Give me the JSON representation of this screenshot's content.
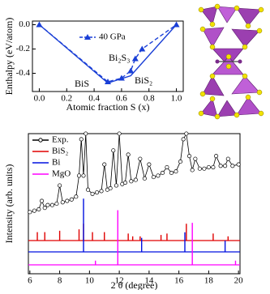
{
  "chart_data": [
    {
      "type": "line",
      "xlabel": "Atomic fraction S (x)",
      "ylabel": "Enthalpy (eV/atom)",
      "xlim": [
        -0.05,
        1.05
      ],
      "ylim": [
        -0.55,
        0.03
      ],
      "xticks": [
        {
          "value": 0,
          "label": "0.0"
        },
        0.2,
        0.4,
        0.6,
        0.8,
        {
          "value": 1,
          "label": "1.0"
        }
      ],
      "yticks": [
        {
          "value": 0,
          "label": "0.0"
        },
        -0.2,
        -0.4
      ],
      "series": [
        {
          "color": "#1a3fd6",
          "mode": "line",
          "x": [
            0,
            0.5,
            0.667,
            1
          ],
          "values": [
            0,
            -0.48,
            -0.42,
            0
          ]
        },
        {
          "name": "40 GPa",
          "color": "#1a3fd6",
          "mode": "line",
          "dash": true,
          "marker": "triangle",
          "x": [
            0,
            0.5,
            0.6,
            0.667,
            0.7,
            0.75,
            1
          ],
          "values": [
            0,
            -0.47,
            -0.44,
            -0.38,
            -0.28,
            -0.2,
            0
          ]
        }
      ],
      "annotations": [
        "BiS",
        "Bi₂S₃",
        "BiS₂"
      ]
    },
    {
      "type": "line",
      "xlabel": "2 θ (degree)",
      "ylabel": "Intensity (arb. units)",
      "xlim": [
        5.9,
        20.1
      ],
      "ylim": [
        0,
        100
      ],
      "xticks": [
        6,
        8,
        10,
        12,
        14,
        16,
        18,
        20
      ],
      "series": [
        {
          "name": "Exp.",
          "color": "#000000",
          "mode": "line",
          "marker": "circle",
          "x": [
            6.0,
            6.3,
            6.6,
            6.8,
            7.0,
            7.2,
            7.5,
            7.8,
            8.0,
            8.2,
            8.5,
            8.8,
            9.1,
            9.3,
            9.45,
            9.6,
            9.75,
            9.9,
            10.2,
            10.5,
            10.8,
            11.0,
            11.2,
            11.4,
            11.6,
            11.8,
            12.0,
            12.2,
            12.4,
            12.6,
            12.8,
            13.1,
            13.4,
            13.7,
            14.0,
            14.3,
            14.6,
            14.9,
            15.2,
            15.5,
            15.8,
            16.1,
            16.3,
            16.5,
            16.7,
            16.9,
            17.1,
            17.4,
            17.7,
            18.0,
            18.3,
            18.5,
            18.8,
            19.1,
            19.3,
            19.6,
            20.0
          ],
          "values": [
            44,
            45,
            46,
            52,
            47,
            49,
            49,
            50,
            63,
            51,
            52,
            53,
            55,
            70,
            96,
            70,
            100,
            60,
            57,
            58,
            59,
            78,
            60,
            61,
            88,
            63,
            100,
            64,
            65,
            85,
            66,
            67,
            82,
            68,
            78,
            69,
            70,
            72,
            76,
            72,
            73,
            80,
            96,
            100,
            84,
            74,
            82,
            75,
            75,
            76,
            76,
            84,
            77,
            77,
            82,
            77,
            78
          ]
        },
        {
          "name": "BiS₂",
          "color": "#e00000",
          "mode": "stems",
          "x": [
            6.5,
            7.0,
            8.0,
            9.3,
            9.6,
            10.2,
            11.0,
            12.6,
            12.9,
            13.4,
            14.8,
            15.2,
            16.5,
            18.3,
            19.3
          ],
          "values": [
            6,
            6,
            7,
            8,
            12,
            6,
            6,
            5,
            3,
            3,
            4,
            5,
            12,
            5,
            3
          ]
        },
        {
          "name": "Bi",
          "color": "#0010e0",
          "mode": "stems",
          "x": [
            9.6,
            13.5,
            16.4,
            19.1
          ],
          "values": [
            38,
            10,
            14,
            8
          ]
        },
        {
          "name": "MgO",
          "color": "#ff00ff",
          "mode": "stems",
          "x": [
            10.4,
            11.9,
            16.9,
            19.8
          ],
          "values": [
            3,
            39,
            30,
            3
          ]
        }
      ]
    }
  ]
}
